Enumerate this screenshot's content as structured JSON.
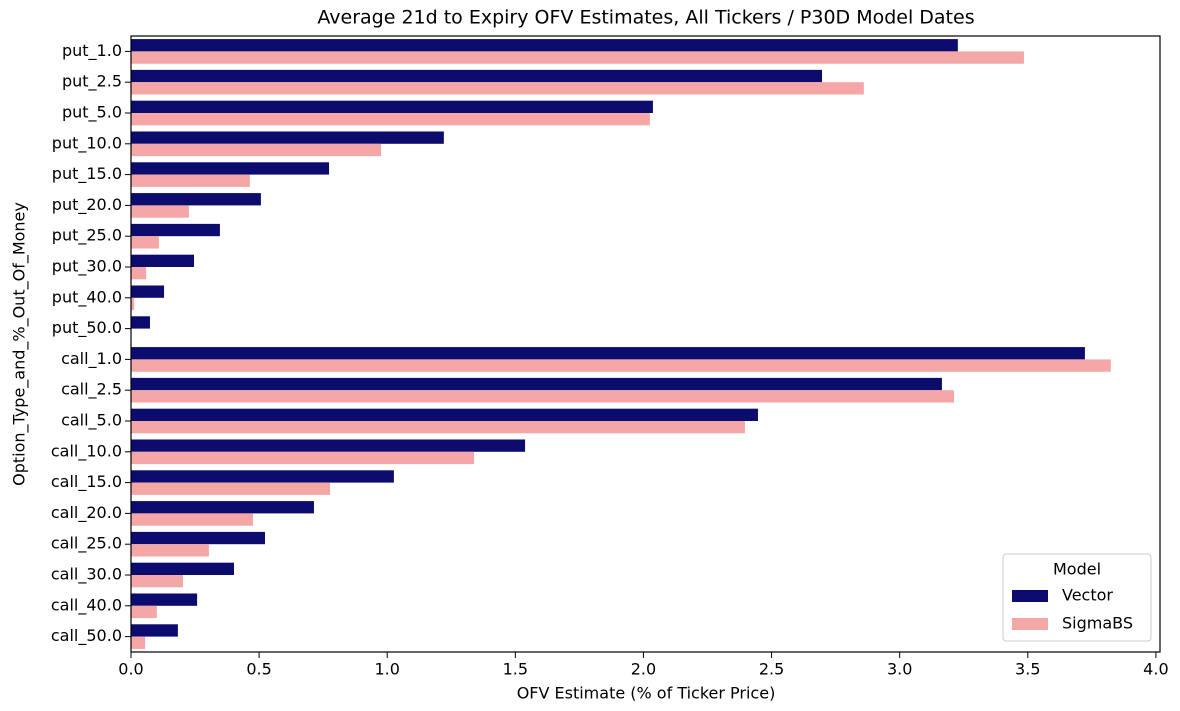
{
  "chart_data": {
    "type": "hbar",
    "title": "Average 21d to Expiry OFV Estimates, All Tickers / P30D Model Dates",
    "xlabel": "OFV Estimate (% of Ticker Price)",
    "ylabel": "Option_Type_and_%_Out_Of_Money",
    "categories": [
      "put_1.0",
      "put_2.5",
      "put_5.0",
      "put_10.0",
      "put_15.0",
      "put_20.0",
      "put_25.0",
      "put_30.0",
      "put_40.0",
      "put_50.0",
      "call_1.0",
      "call_2.5",
      "call_5.0",
      "call_10.0",
      "call_15.0",
      "call_20.0",
      "call_25.0",
      "call_30.0",
      "call_40.0",
      "call_50.0"
    ],
    "series": [
      {
        "name": "Vector",
        "color": "#0c0c6e",
        "values": [
          3.227,
          2.697,
          2.037,
          1.221,
          0.773,
          0.507,
          0.347,
          0.246,
          0.129,
          0.074,
          3.723,
          3.165,
          2.447,
          1.538,
          1.026,
          0.714,
          0.523,
          0.402,
          0.258,
          0.183
        ]
      },
      {
        "name": "SigmaBS",
        "color": "#f5a6a6",
        "values": [
          3.485,
          2.86,
          2.025,
          0.976,
          0.464,
          0.226,
          0.109,
          0.059,
          0.012,
          0.002,
          3.824,
          3.212,
          2.396,
          1.339,
          0.777,
          0.476,
          0.304,
          0.203,
          0.101,
          0.055
        ]
      }
    ],
    "xlim": [
      0,
      4.016
    ],
    "xticks": [
      {
        "value": 0,
        "label": "0.0"
      },
      0.5,
      {
        "value": 1,
        "label": "1.0"
      },
      1.5,
      {
        "value": 2,
        "label": "2.0"
      },
      2.5,
      {
        "value": 3,
        "label": "3.0"
      },
      3.5,
      {
        "value": 4,
        "label": "4.0"
      }
    ],
    "legend": {
      "title": "Model",
      "position": "lower right"
    }
  }
}
